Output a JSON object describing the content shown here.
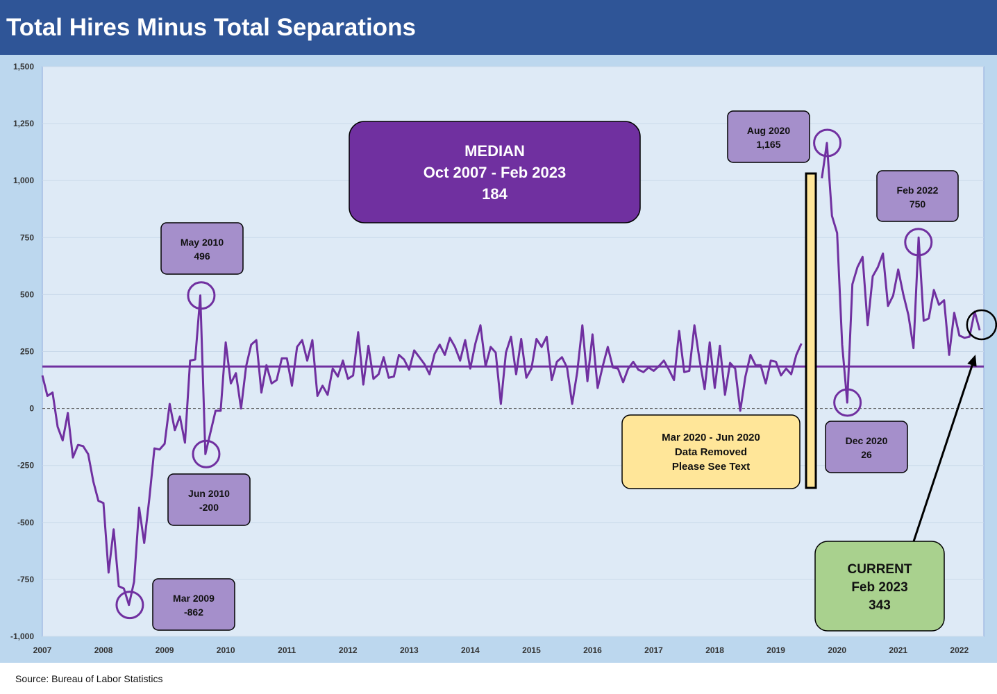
{
  "title": "Total Hires Minus Total Separations",
  "source": "Source: Bureau of Labor Statistics",
  "colors": {
    "header": "#2f5597",
    "outer_bg": "#bcd7ee",
    "plot_bg": "#deeaf6",
    "series": "#7030a0",
    "median_box": "#7030a0",
    "callout": "#a58fcb",
    "note_box": "#ffe699",
    "current_box": "#a9d18e"
  },
  "chart_data": {
    "type": "line",
    "title": "Total Hires Minus Total Separations",
    "xlabel": "",
    "ylabel": "",
    "ylim": [
      -1000,
      1500
    ],
    "yticks": [
      -1000,
      -750,
      -500,
      -250,
      0,
      250,
      500,
      750,
      1000,
      1250,
      1500
    ],
    "ytick_labels": [
      "-1,000",
      "-750",
      "-500",
      "-250",
      "0",
      "250",
      "500",
      "750",
      "1,000",
      "1,250",
      "1,500"
    ],
    "xlim": [
      2007,
      2022.4
    ],
    "xticks": [
      2007,
      2008,
      2009,
      2010,
      2011,
      2012,
      2013,
      2014,
      2015,
      2016,
      2017,
      2018,
      2019,
      2020,
      2021,
      2022
    ],
    "xtick_labels": [
      "2007",
      "2008",
      "2009",
      "2010",
      "2011",
      "2012",
      "2013",
      "2014",
      "2015",
      "2016",
      "2017",
      "2018",
      "2019",
      "2020",
      "2021",
      "2022"
    ],
    "grid": "horizontal",
    "zero_line": "dashed",
    "median": 184,
    "series": [
      {
        "segments": [
          {
            "x_start": 2007.0,
            "x_step": 0.08333,
            "values": [
              145,
              55,
              70,
              -80,
              -140,
              -20,
              -215,
              -160,
              -165,
              -200,
              -320,
              -405,
              -415,
              -720,
              -530,
              -780,
              -790,
              -862,
              -760,
              -435,
              -590,
              -395,
              -175,
              -180,
              -155,
              20,
              -95,
              -35,
              -150,
              210,
              215,
              496,
              -200,
              -105,
              -10,
              -10,
              290,
              110,
              155,
              0,
              185,
              280,
              300,
              70,
              190,
              110,
              125,
              220,
              220,
              100,
              270,
              300,
              210,
              300,
              55,
              100,
              60,
              175,
              140,
              210,
              130,
              145,
              335,
              105,
              275,
              130,
              150,
              225,
              135,
              140,
              235,
              215,
              170,
              255,
              225,
              195,
              150,
              240,
              280,
              235,
              310,
              270,
              210,
              300,
              175,
              285,
              365,
              185,
              270,
              245,
              20,
              245,
              315,
              150,
              305,
              135,
              175,
              305,
              270,
              315,
              125,
              205,
              225,
              180,
              20,
              160,
              365,
              120,
              325,
              90,
              185,
              270,
              180,
              175,
              115,
              175,
              205,
              170,
              160,
              180,
              165,
              185,
              210,
              170,
              125,
              340,
              160,
              165,
              365,
              215,
              85,
              290,
              90,
              275,
              60,
              200,
              175,
              -10,
              140,
              235,
              190,
              190,
              110,
              210,
              205,
              145,
              175,
              150,
              235,
              285
            ]
          },
          {
            "x_start": 2019.75,
            "x_step": 0.08333,
            "values": [
              1010,
              1165,
              845,
              770,
              280,
              26,
              545,
              620,
              665,
              365,
              580,
              620,
              680,
              450,
              495,
              610,
              500,
              410,
              265,
              750,
              385,
              395,
              520,
              455,
              475,
              235,
              420,
              320,
              310,
              315,
              425,
              343
            ]
          }
        ]
      }
    ],
    "annotations": {
      "median_box": [
        "MEDIAN",
        "Oct 2007 - Feb 2023",
        "184"
      ],
      "callouts": [
        {
          "lines": [
            "May 2010",
            "496"
          ],
          "x": 2009.6,
          "y": 496
        },
        {
          "lines": [
            "Jun 2010",
            "-200"
          ],
          "x": 2009.68,
          "y": -200
        },
        {
          "lines": [
            "Mar 2009",
            "-862"
          ],
          "x": 2008.43,
          "y": -862
        },
        {
          "lines": [
            "Aug 2020",
            "1,165"
          ],
          "x": 2019.84,
          "y": 1165
        },
        {
          "lines": [
            "Dec 2020",
            "26"
          ],
          "x": 2020.17,
          "y": 26
        },
        {
          "lines": [
            "Feb 2022",
            "750"
          ],
          "x": 2021.33,
          "y": 730
        }
      ],
      "removed_note": [
        "Mar 2020 - Jun 2020",
        "Data Removed",
        "Please See Text"
      ],
      "current_box": [
        "CURRENT",
        "Feb 2023",
        "343"
      ],
      "current_point": {
        "x": 2022.33,
        "y": 343
      }
    }
  }
}
